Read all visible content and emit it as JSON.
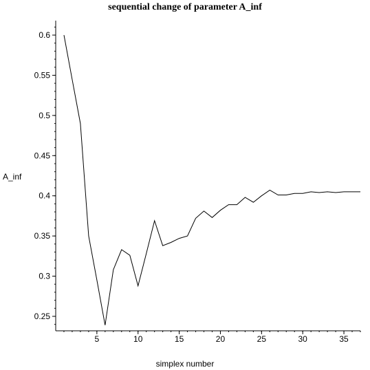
{
  "chart_data": {
    "type": "line",
    "title": "sequential change of parameter A_inf",
    "xlabel": "simplex number",
    "ylabel": "A_inf",
    "xlim": [
      0,
      37
    ],
    "ylim": [
      0.232,
      0.618
    ],
    "x_ticks": [
      5,
      10,
      15,
      20,
      25,
      30,
      35
    ],
    "y_ticks": [
      0.25,
      0.3,
      0.35,
      0.4,
      0.45,
      0.5,
      0.55,
      0.6
    ],
    "y_tick_labels": [
      "0.25",
      "0.3",
      "0.35",
      "0.4",
      "0.45",
      "0.5",
      "0.55",
      "0.6"
    ],
    "grid": false,
    "series": [
      {
        "x": [
          1,
          2,
          3,
          4,
          5,
          6,
          7,
          8,
          9,
          10,
          11,
          12,
          13,
          14,
          15,
          16,
          17,
          18,
          19,
          20,
          21,
          22,
          23,
          24,
          25,
          26,
          27,
          28,
          29,
          30,
          31,
          32,
          33,
          34,
          35,
          36,
          37
        ],
        "y": [
          0.6,
          0.545,
          0.49,
          0.35,
          0.295,
          0.239,
          0.308,
          0.333,
          0.326,
          0.288,
          0.328,
          0.369,
          0.338,
          0.342,
          0.347,
          0.35,
          0.372,
          0.381,
          0.373,
          0.382,
          0.389,
          0.389,
          0.398,
          0.392,
          0.4,
          0.407,
          0.401,
          0.401,
          0.403,
          0.403,
          0.405,
          0.404,
          0.405,
          0.404,
          0.405,
          0.405,
          0.405
        ],
        "color": "#000000"
      }
    ]
  }
}
